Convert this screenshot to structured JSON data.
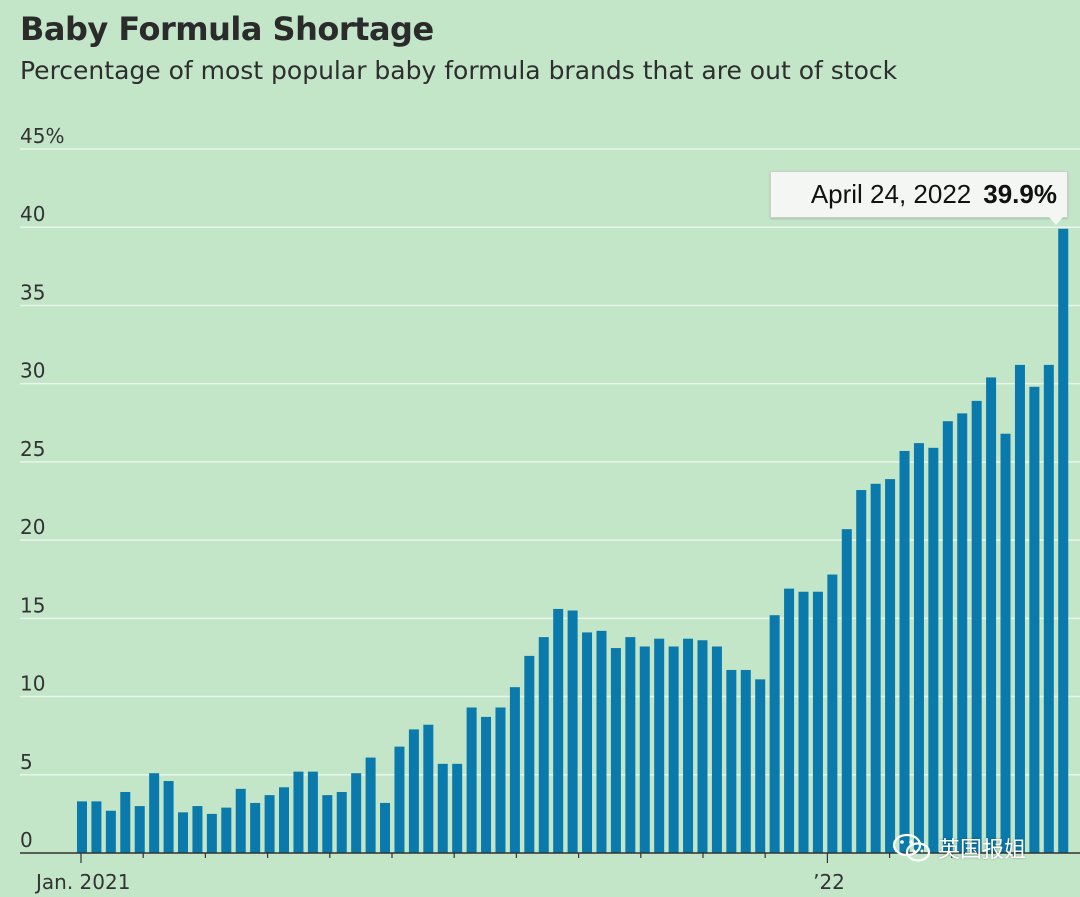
{
  "chart_data": {
    "type": "bar",
    "title": "Baby Formula Shortage",
    "subtitle": "Percentage of most popular baby formula brands that are out of stock",
    "xlabel": "",
    "ylabel": "",
    "ylim": [
      0,
      45
    ],
    "y_ticks": [
      "45%",
      "40",
      "35",
      "30",
      "25",
      "20",
      "15",
      "10",
      "5",
      "0"
    ],
    "x_tick_labels": [
      "Jan. 2021",
      "’22"
    ],
    "grid": true,
    "series": [
      {
        "name": "Out of stock",
        "values": [
          3.3,
          3.3,
          2.7,
          3.9,
          3.0,
          5.1,
          4.6,
          2.6,
          3.0,
          2.5,
          2.9,
          4.1,
          3.2,
          3.7,
          4.2,
          5.2,
          5.2,
          3.7,
          3.9,
          5.1,
          6.1,
          3.2,
          6.8,
          7.9,
          8.2,
          5.7,
          5.7,
          9.3,
          8.7,
          9.3,
          10.6,
          12.6,
          13.8,
          15.6,
          15.5,
          14.1,
          14.2,
          13.1,
          13.8,
          13.2,
          13.7,
          13.2,
          13.7,
          13.6,
          13.2,
          11.7,
          11.7,
          11.1,
          15.2,
          16.9,
          16.7,
          16.7,
          17.8,
          20.7,
          23.2,
          23.6,
          23.9,
          25.7,
          26.2,
          25.9,
          27.6,
          28.1,
          28.9,
          30.4,
          26.8,
          31.2,
          29.8,
          31.2,
          39.9
        ]
      }
    ],
    "annotation": {
      "date": "April 24, 2022",
      "value": "39.9%"
    }
  },
  "watermark": {
    "text": "英国报姐",
    "icon": "wechat-icon"
  },
  "colors": {
    "background": "#c3e6c9",
    "bar": "#0a79ac",
    "grid": "#e9f5ea"
  }
}
